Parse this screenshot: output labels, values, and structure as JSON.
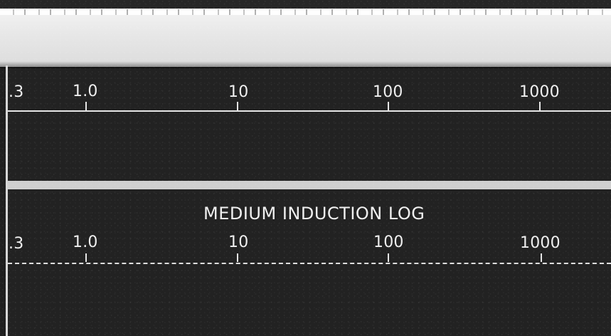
{
  "title": "MEDIUM INDUCTION LOG",
  "top_scale": {
    "labels": [
      ".3",
      "1.0",
      "10",
      "100",
      "1000"
    ]
  },
  "bottom_scale": {
    "labels": [
      ".3",
      "1.0",
      "10",
      "100",
      "1000"
    ]
  },
  "colors": {
    "background": "#1f1f1f",
    "paper": "#e8e8e8",
    "ink": "#ececec"
  }
}
